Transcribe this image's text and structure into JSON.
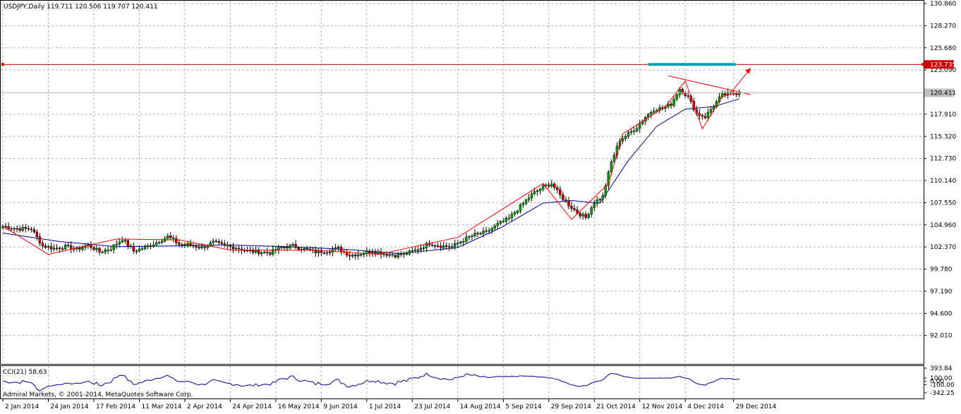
{
  "header": {
    "symbol_line": "USDJPY,Daily  119.711 120.506 119.707 120.411"
  },
  "price_panel": {
    "ylim": [
      90.0,
      130.86
    ],
    "y_ticks": [
      "130.860",
      "128.270",
      "125.680",
      "123.090",
      "120.411",
      "117.910",
      "115.320",
      "112.730",
      "110.140",
      "107.550",
      "104.960",
      "102.370",
      "99.780",
      "97.190",
      "94.600",
      "92.010"
    ],
    "y_tick_values": [
      130.86,
      128.27,
      125.68,
      123.09,
      120.411,
      117.91,
      115.32,
      112.73,
      110.14,
      107.55,
      104.96,
      102.37,
      99.78,
      97.19,
      94.6,
      92.01
    ],
    "current_price_label": "120.411",
    "current_price": 120.411,
    "hline_label": "123.735",
    "hline_value": 123.735,
    "colors": {
      "bull": "#00aa00",
      "bear": "#d00000",
      "ma": "#0000a0",
      "zigzag": "#ff0000",
      "hline": "#cc0000",
      "target": "#00a0b0"
    }
  },
  "cci_panel": {
    "title": "CCI(21) 58.63",
    "ylim": [
      -342.25,
      393.84
    ],
    "y_ticks": [
      "393.84",
      "100.00",
      "0.00",
      "-100.00",
      "-342.25"
    ],
    "y_tick_values": [
      393.84,
      100,
      0,
      -100,
      -342.25
    ],
    "watermark": "Admiral Markets, © 2001-2014, MetaQuotes Software Corp."
  },
  "x_axis": {
    "labels": [
      "2 Jan 2014",
      "24 Jan 2014",
      "17 Feb 2014",
      "11 Mar 2014",
      "2 Apr 2014",
      "24 Apr 2014",
      "16 May 2014",
      "9 Jun 2014",
      "1 Jul 2014",
      "23 Jul 2014",
      "14 Aug 2014",
      "5 Sep 2014",
      "29 Sep 2014",
      "21 Oct 2014",
      "12 Nov 2014",
      "4 Dec 2014",
      "29 Dec 2014"
    ],
    "label_index": [
      0,
      16,
      32,
      48,
      64,
      80,
      96,
      112,
      128,
      144,
      160,
      176,
      192,
      208,
      224,
      240,
      257
    ]
  },
  "chart_data": {
    "type": "line",
    "title": "USDJPY,Daily",
    "xlabel": "",
    "ylabel": "",
    "ohlc_last": {
      "open": 119.711,
      "high": 120.506,
      "low": 119.707,
      "close": 120.411
    },
    "x_range": [
      "2 Jan 2014",
      "30 Dec 2014"
    ],
    "ylim": [
      90.0,
      130.86
    ],
    "series": [
      {
        "name": "USDJPY",
        "x_index": [
          0,
          5,
          10,
          14,
          18,
          22,
          26,
          30,
          34,
          38,
          42,
          46,
          50,
          54,
          58,
          62,
          66,
          70,
          74,
          78,
          82,
          86,
          90,
          94,
          98,
          102,
          106,
          110,
          114,
          118,
          122,
          126,
          130,
          134,
          138,
          142,
          146,
          150,
          154,
          158,
          162,
          166,
          170,
          174,
          178,
          182,
          186,
          190,
          193,
          196,
          199,
          202,
          205,
          208,
          211,
          214,
          217,
          220,
          223,
          226,
          229,
          232,
          235,
          238,
          241,
          244,
          247,
          250,
          253,
          256,
          259
        ],
        "values": [
          104.8,
          104.5,
          104.5,
          102.5,
          102.2,
          102.4,
          102.1,
          102.6,
          101.8,
          102.2,
          103.3,
          101.9,
          102.3,
          102.9,
          103.6,
          102.7,
          102.6,
          102.3,
          102.9,
          102.5,
          102.3,
          101.9,
          101.8,
          101.7,
          102.3,
          102.5,
          102.1,
          101.8,
          101.9,
          102.2,
          101.4,
          101.6,
          101.9,
          101.6,
          101.4,
          101.6,
          102.1,
          102.8,
          102.5,
          102.4,
          103.2,
          103.8,
          104.1,
          105.0,
          105.7,
          107.1,
          108.5,
          109.4,
          109.8,
          108.4,
          107.3,
          106.4,
          105.8,
          107.6,
          108.3,
          112.3,
          114.9,
          115.6,
          116.4,
          117.6,
          118.5,
          118.6,
          119.1,
          120.9,
          119.9,
          118.0,
          117.6,
          118.9,
          120.2,
          120.3,
          120.411
        ]
      },
      {
        "name": "MA",
        "x_index": [
          0,
          20,
          40,
          60,
          80,
          100,
          120,
          140,
          160,
          175,
          190,
          200,
          210,
          220,
          230,
          240,
          250,
          259
        ],
        "values": [
          104.0,
          103.0,
          102.4,
          102.5,
          102.6,
          102.4,
          102.1,
          101.6,
          102.3,
          104.6,
          107.5,
          107.8,
          107.5,
          112.5,
          116.5,
          118.5,
          118.8,
          119.7
        ]
      },
      {
        "name": "ZigZag",
        "x_index": [
          0,
          16,
          40,
          62,
          80,
          110,
          132,
          160,
          190,
          200,
          213,
          218,
          233,
          240,
          246,
          253,
          259
        ],
        "values": [
          104.8,
          101.5,
          103.3,
          103.2,
          102.0,
          102.0,
          101.5,
          103.5,
          109.8,
          105.6,
          109.8,
          115.6,
          118.8,
          121.8,
          116.2,
          120.0,
          120.41
        ]
      }
    ]
  }
}
